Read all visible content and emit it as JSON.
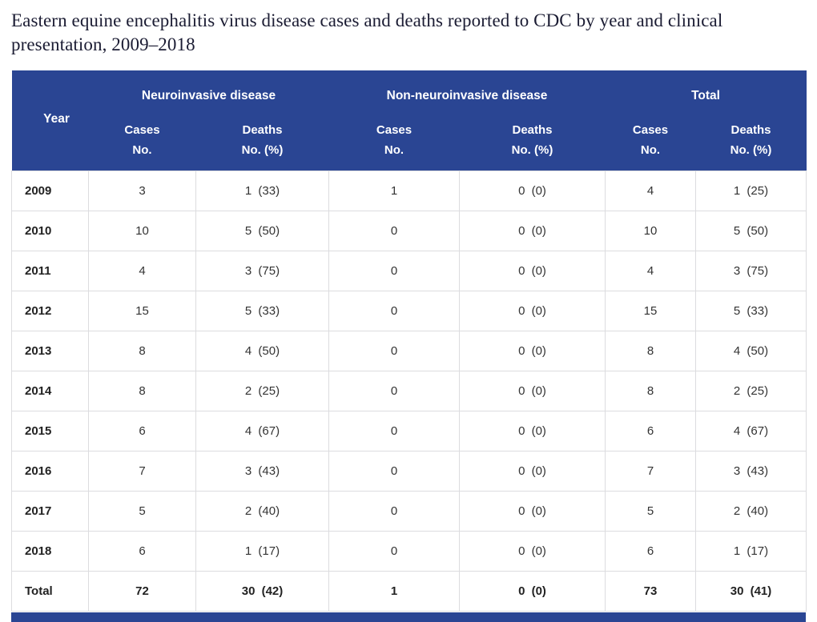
{
  "title": "Eastern equine encephalitis virus disease cases and deaths reported to CDC by year and clinical presentation, 2009–2018",
  "table": {
    "header": {
      "year_label": "Year",
      "groups": [
        {
          "label": "Neuroinvasive disease"
        },
        {
          "label": "Non-neuroinvasive disease"
        },
        {
          "label": "Total"
        }
      ],
      "sub_columns": [
        {
          "key": "neuro_cases",
          "line1": "Cases",
          "line2": "No."
        },
        {
          "key": "neuro_deaths",
          "line1": "Deaths",
          "line2": "No. (%)"
        },
        {
          "key": "non_neuro_cases",
          "line1": "Cases",
          "line2": "No."
        },
        {
          "key": "non_neuro_deaths",
          "line1": "Deaths",
          "line2": "No. (%)"
        },
        {
          "key": "total_cases",
          "line1": "Cases",
          "line2": "No."
        },
        {
          "key": "total_deaths",
          "line1": "Deaths",
          "line2": "No. (%)"
        }
      ]
    },
    "rows": [
      {
        "year": "2009",
        "neuro_cases": "3",
        "neuro_deaths": "1 (33)",
        "non_neuro_cases": "1",
        "non_neuro_deaths": "0 (0)",
        "total_cases": "4",
        "total_deaths": "1 (25)"
      },
      {
        "year": "2010",
        "neuro_cases": "10",
        "neuro_deaths": "5 (50)",
        "non_neuro_cases": "0",
        "non_neuro_deaths": "0 (0)",
        "total_cases": "10",
        "total_deaths": "5 (50)"
      },
      {
        "year": "2011",
        "neuro_cases": "4",
        "neuro_deaths": "3 (75)",
        "non_neuro_cases": "0",
        "non_neuro_deaths": "0 (0)",
        "total_cases": "4",
        "total_deaths": "3 (75)"
      },
      {
        "year": "2012",
        "neuro_cases": "15",
        "neuro_deaths": "5 (33)",
        "non_neuro_cases": "0",
        "non_neuro_deaths": "0 (0)",
        "total_cases": "15",
        "total_deaths": "5 (33)"
      },
      {
        "year": "2013",
        "neuro_cases": "8",
        "neuro_deaths": "4 (50)",
        "non_neuro_cases": "0",
        "non_neuro_deaths": "0 (0)",
        "total_cases": "8",
        "total_deaths": "4 (50)"
      },
      {
        "year": "2014",
        "neuro_cases": "8",
        "neuro_deaths": "2 (25)",
        "non_neuro_cases": "0",
        "non_neuro_deaths": "0 (0)",
        "total_cases": "8",
        "total_deaths": "2 (25)"
      },
      {
        "year": "2015",
        "neuro_cases": "6",
        "neuro_deaths": "4 (67)",
        "non_neuro_cases": "0",
        "non_neuro_deaths": "0 (0)",
        "total_cases": "6",
        "total_deaths": "4 (67)"
      },
      {
        "year": "2016",
        "neuro_cases": "7",
        "neuro_deaths": "3 (43)",
        "non_neuro_cases": "0",
        "non_neuro_deaths": "0 (0)",
        "total_cases": "7",
        "total_deaths": "3 (43)"
      },
      {
        "year": "2017",
        "neuro_cases": "5",
        "neuro_deaths": "2 (40)",
        "non_neuro_cases": "0",
        "non_neuro_deaths": "0 (0)",
        "total_cases": "5",
        "total_deaths": "2 (40)"
      },
      {
        "year": "2018",
        "neuro_cases": "6",
        "neuro_deaths": "1 (17)",
        "non_neuro_cases": "0",
        "non_neuro_deaths": "0 (0)",
        "total_cases": "6",
        "total_deaths": "1 (17)"
      }
    ],
    "total_row": {
      "year": "Total",
      "neuro_cases": "72",
      "neuro_deaths": "30 (42)",
      "non_neuro_cases": "1",
      "non_neuro_deaths": "0 (0)",
      "total_cases": "73",
      "total_deaths": "30 (41)"
    },
    "colors": {
      "header_background": "#2a4593",
      "header_text": "#ffffff",
      "body_text": "#333333",
      "border": "#dcdcdf"
    }
  }
}
